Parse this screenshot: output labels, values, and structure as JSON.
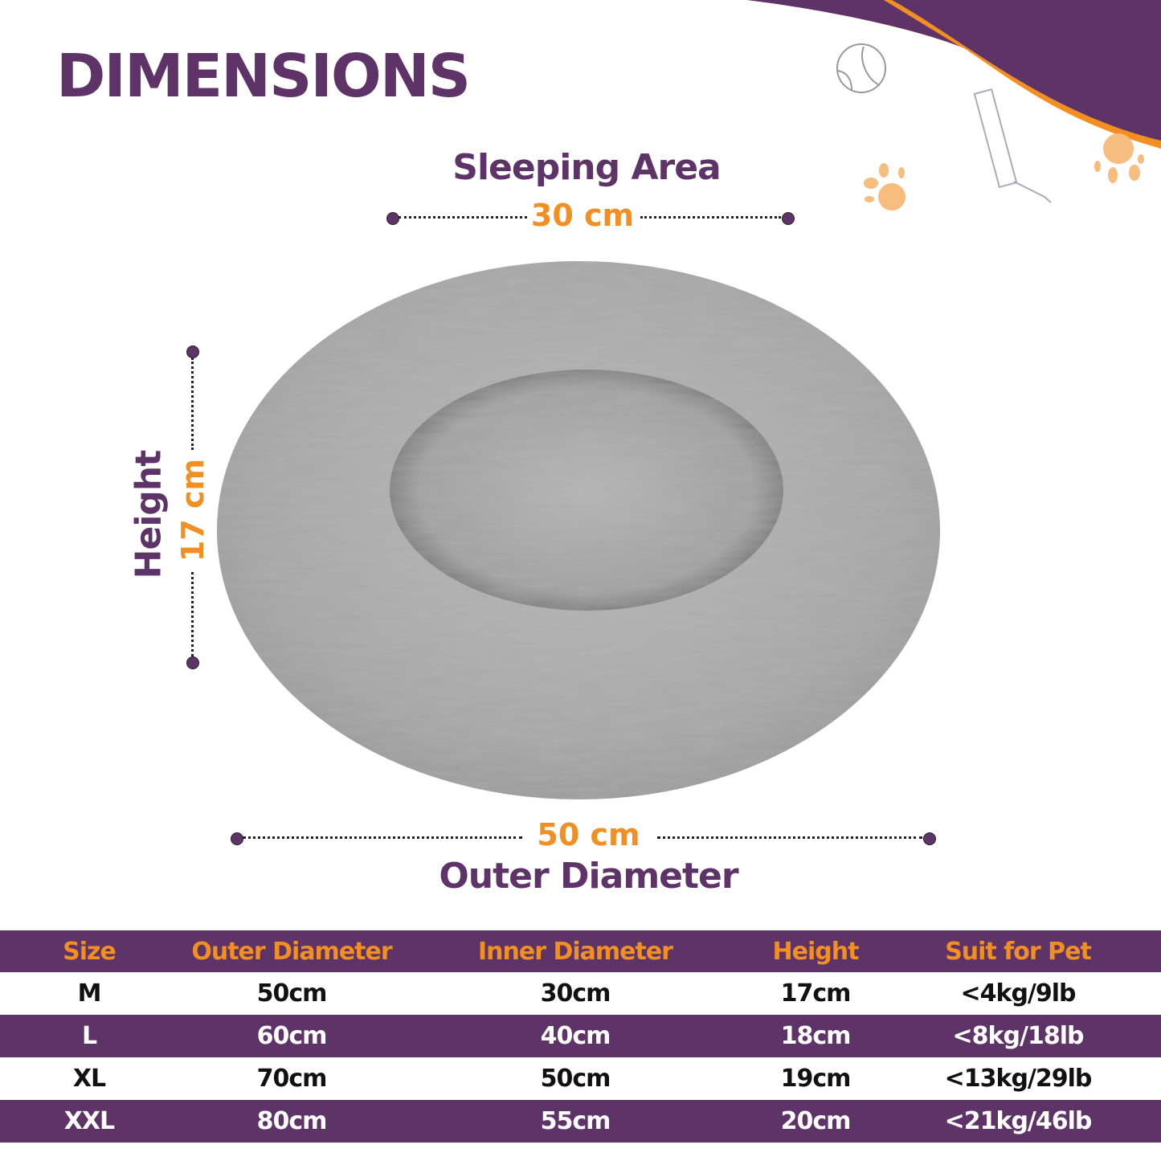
{
  "title": "DIMENSIONS",
  "sleeping_area": {
    "label": "Sleeping Area",
    "value": "30 cm"
  },
  "height": {
    "label": "Height",
    "value": "17 cm"
  },
  "outer_diameter": {
    "label": "Outer Diameter",
    "value": "50 cm"
  },
  "colors": {
    "purple": "#5e3468",
    "orange": "#f18f22",
    "bed_gray": "#a9a9a9"
  },
  "decorations": [
    "tennis-ball-icon",
    "water-bottle-icon",
    "paw-print-icon",
    "paw-print-icon"
  ],
  "table": {
    "headers": [
      "Size",
      "Outer Diameter",
      "Inner Diameter",
      "Height",
      "Suit for Pet"
    ],
    "rows": [
      [
        "M",
        "50cm",
        "30cm",
        "17cm",
        "<4kg/9lb"
      ],
      [
        "L",
        "60cm",
        "40cm",
        "18cm",
        "<8kg/18lb"
      ],
      [
        "XL",
        "70cm",
        "50cm",
        "19cm",
        "<13kg/29lb"
      ],
      [
        "XXL",
        "80cm",
        "55cm",
        "20cm",
        "<21kg/46lb"
      ]
    ]
  }
}
